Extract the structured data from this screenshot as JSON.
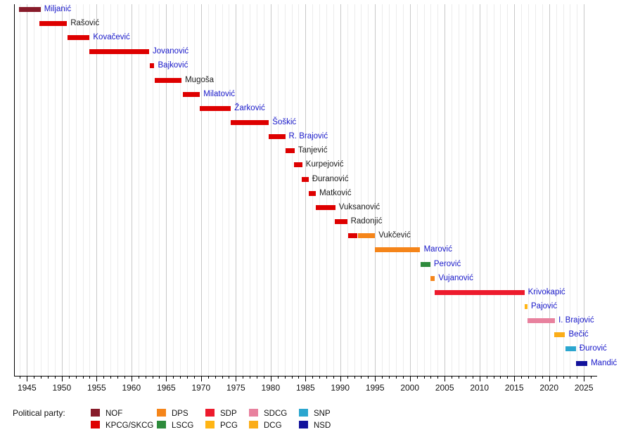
{
  "legend": {
    "title": "Political party:",
    "rows": [
      [
        "NOF",
        "DPS",
        "SDP",
        "SDCG",
        "SNP"
      ],
      [
        "KPCG/SKCG",
        "LSCG",
        "PCG",
        "DCG",
        "NSD"
      ]
    ]
  },
  "party_colors": {
    "NOF": "#871B2A",
    "KPCG/SKCG": "#DE0000",
    "DPS": "#F5851A",
    "LSCG": "#2E8B3C",
    "SDP": "#ED1B2D",
    "PCG": "#FFB515",
    "SDCG": "#E8819E",
    "DCG": "#FBAD18",
    "SNP": "#2BA6CF",
    "NSD": "#12129B"
  },
  "chart_data": {
    "type": "timeline",
    "title": "",
    "xlim": [
      1943.2,
      2026.9
    ],
    "x_major_ticks": [
      1945,
      1950,
      1955,
      1960,
      1965,
      1970,
      1975,
      1980,
      1985,
      1990,
      1995,
      2000,
      2005,
      2010,
      2015,
      2020,
      2025
    ],
    "x_minor_tick_interval": 1,
    "grid": "vertical-yearly",
    "legend_position": "bottom",
    "bars": [
      {
        "name": "Miljanić",
        "link": true,
        "segments": [
          [
            "NOF",
            1943.87,
            1946.97
          ]
        ]
      },
      {
        "name": "Rašović",
        "link": false,
        "segments": [
          [
            "KPCG/SKCG",
            1946.8,
            1950.75
          ]
        ]
      },
      {
        "name": "Kovačević",
        "link": true,
        "segments": [
          [
            "KPCG/SKCG",
            1950.8,
            1954.0
          ]
        ]
      },
      {
        "name": "Jovanović",
        "link": true,
        "segments": [
          [
            "KPCG/SKCG",
            1954.0,
            1962.55
          ]
        ]
      },
      {
        "name": "Bajković",
        "link": true,
        "segments": [
          [
            "KPCG/SKCG",
            1962.6,
            1963.3
          ]
        ]
      },
      {
        "name": "Mugoša",
        "link": false,
        "segments": [
          [
            "KPCG/SKCG",
            1963.35,
            1967.2
          ]
        ]
      },
      {
        "name": "Milatović",
        "link": true,
        "segments": [
          [
            "KPCG/SKCG",
            1967.35,
            1969.85
          ]
        ]
      },
      {
        "name": "Žarković",
        "link": true,
        "segments": [
          [
            "KPCG/SKCG",
            1969.85,
            1974.3
          ]
        ]
      },
      {
        "name": "Šoškić",
        "link": true,
        "segments": [
          [
            "KPCG/SKCG",
            1974.3,
            1979.75
          ]
        ]
      },
      {
        "name": "R. Brajović",
        "link": true,
        "segments": [
          [
            "KPCG/SKCG",
            1979.7,
            1982.1
          ]
        ]
      },
      {
        "name": "Tanjević",
        "link": false,
        "segments": [
          [
            "KPCG/SKCG",
            1982.1,
            1983.45
          ]
        ]
      },
      {
        "name": "Kurpejović",
        "link": false,
        "segments": [
          [
            "KPCG/SKCG",
            1983.35,
            1984.55
          ]
        ]
      },
      {
        "name": "Đuranović",
        "link": false,
        "segments": [
          [
            "KPCG/SKCG",
            1984.45,
            1985.45
          ]
        ]
      },
      {
        "name": "Matković",
        "link": false,
        "segments": [
          [
            "KPCG/SKCG",
            1985.45,
            1986.5
          ]
        ]
      },
      {
        "name": "Vuksanović",
        "link": false,
        "segments": [
          [
            "KPCG/SKCG",
            1986.5,
            1989.3
          ]
        ]
      },
      {
        "name": "Radonjić",
        "link": false,
        "segments": [
          [
            "KPCG/SKCG",
            1989.25,
            1991.0
          ]
        ]
      },
      {
        "name": "Vukčević",
        "link": false,
        "segments": [
          [
            "KPCG/SKCG",
            1991.1,
            1992.5
          ],
          [
            "DPS",
            1992.5,
            1995.0
          ]
        ]
      },
      {
        "name": "Marović",
        "link": true,
        "segments": [
          [
            "DPS",
            1994.95,
            2001.5
          ]
        ]
      },
      {
        "name": "Perović",
        "link": true,
        "segments": [
          [
            "LSCG",
            2001.5,
            2002.95
          ]
        ]
      },
      {
        "name": "Vujanović",
        "link": true,
        "segments": [
          [
            "DPS",
            2002.95,
            2003.6
          ]
        ]
      },
      {
        "name": "Krivokapić",
        "link": true,
        "segments": [
          [
            "SDP",
            2003.6,
            2016.45
          ]
        ]
      },
      {
        "name": "Pajović",
        "link": true,
        "segments": [
          [
            "PCG",
            2016.45,
            2016.9
          ]
        ]
      },
      {
        "name": "I. Brajović",
        "link": true,
        "segments": [
          [
            "SDCG",
            2016.9,
            2020.85
          ]
        ]
      },
      {
        "name": "Bečić",
        "link": true,
        "segments": [
          [
            "DCG",
            2020.75,
            2022.3
          ]
        ]
      },
      {
        "name": "Đurović",
        "link": true,
        "segments": [
          [
            "SNP",
            2022.3,
            2023.85
          ]
        ]
      },
      {
        "name": "Mandić",
        "link": true,
        "segments": [
          [
            "NSD",
            2023.85,
            2025.5
          ]
        ]
      }
    ]
  }
}
